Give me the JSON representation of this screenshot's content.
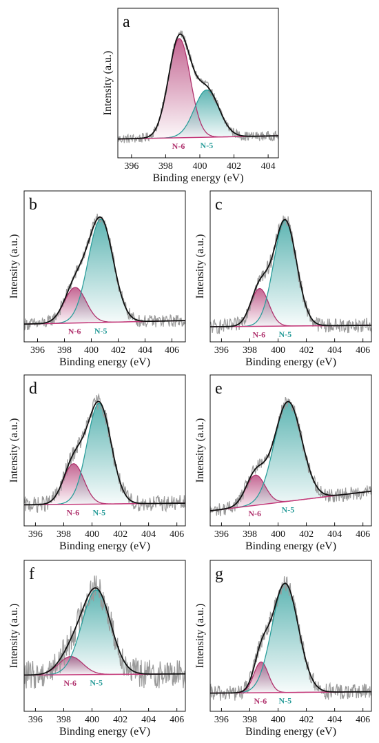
{
  "colors": {
    "n6": "#b0336e",
    "n5": "#2a9d9a",
    "envelope": "#111111",
    "raw": "#9a9a9a",
    "background_line": "#c43a7a"
  },
  "chart_data": [
    {
      "type": "line",
      "panel": "a",
      "xlabel": "Binding energy (eV)",
      "ylabel": "Intensity (a.u.)",
      "xlim": [
        395.2,
        404.6
      ],
      "xticks": [
        396,
        398,
        400,
        402,
        404
      ],
      "grid": false,
      "peaks": [
        {
          "name": "N-6",
          "center": 398.8,
          "height": 0.63,
          "fwhm": 1.5
        },
        {
          "name": "N-5",
          "center": 400.4,
          "height": 0.3,
          "fwhm": 1.7
        }
      ],
      "baseline": [
        0.07,
        0.09
      ],
      "noise": 0.03,
      "ylim": [
        -0.05,
        0.9
      ]
    },
    {
      "type": "line",
      "panel": "b",
      "xlabel": "Binding energy (eV)",
      "ylabel": "Intensity (a.u.)",
      "xlim": [
        395,
        407
      ],
      "xticks": [
        396,
        398,
        400,
        402,
        404,
        406
      ],
      "grid": false,
      "peaks": [
        {
          "name": "N-6",
          "center": 398.8,
          "height": 0.2,
          "fwhm": 1.9
        },
        {
          "name": "N-5",
          "center": 400.7,
          "height": 0.58,
          "fwhm": 2.2
        }
      ],
      "baseline": [
        0.05,
        0.07
      ],
      "noise": 0.035,
      "ylim": [
        -0.05,
        0.8
      ]
    },
    {
      "type": "line",
      "panel": "c",
      "xlabel": "Binding energy (eV)",
      "ylabel": "Intensity (a.u.)",
      "xlim": [
        395.2,
        406.6
      ],
      "xticks": [
        396,
        398,
        400,
        402,
        404,
        406
      ],
      "grid": false,
      "peaks": [
        {
          "name": "N-6",
          "center": 398.7,
          "height": 0.25,
          "fwhm": 1.5
        },
        {
          "name": "N-5",
          "center": 400.5,
          "height": 0.7,
          "fwhm": 1.9
        }
      ],
      "baseline": [
        0.05,
        0.06
      ],
      "noise": 0.05,
      "ylim": [
        -0.05,
        0.95
      ]
    },
    {
      "type": "line",
      "panel": "d",
      "xlabel": "Binding energy (eV)",
      "ylabel": "Intensity (a.u.)",
      "xlim": [
        395.2,
        406.6
      ],
      "xticks": [
        396,
        398,
        400,
        402,
        404,
        406
      ],
      "grid": false,
      "peaks": [
        {
          "name": "N-6",
          "center": 398.7,
          "height": 0.25,
          "fwhm": 1.7
        },
        {
          "name": "N-5",
          "center": 400.5,
          "height": 0.62,
          "fwhm": 2.0
        }
      ],
      "baseline": [
        0.05,
        0.06
      ],
      "noise": 0.05,
      "ylim": [
        -0.08,
        0.85
      ]
    },
    {
      "type": "line",
      "panel": "e",
      "xlabel": "Binding energy (eV)",
      "ylabel": "Intensity (a.u.)",
      "xlim": [
        395.2,
        406.6
      ],
      "xticks": [
        396,
        398,
        400,
        402,
        404,
        406
      ],
      "grid": false,
      "peaks": [
        {
          "name": "N-6",
          "center": 398.4,
          "height": 0.2,
          "fwhm": 1.6
        },
        {
          "name": "N-5",
          "center": 400.7,
          "height": 0.66,
          "fwhm": 2.3
        }
      ],
      "baseline": [
        0.05,
        0.18
      ],
      "noise": 0.045,
      "ylim": [
        -0.05,
        0.95
      ]
    },
    {
      "type": "line",
      "panel": "f",
      "xlabel": "Binding energy (eV)",
      "ylabel": "Intensity (a.u.)",
      "xlim": [
        395.2,
        406.6
      ],
      "xticks": [
        396,
        398,
        400,
        402,
        404,
        406
      ],
      "grid": false,
      "peaks": [
        {
          "name": "N-6",
          "center": 398.5,
          "height": 0.15,
          "fwhm": 2.0
        },
        {
          "name": "N-5",
          "center": 400.3,
          "height": 0.7,
          "fwhm": 2.4
        }
      ],
      "baseline": [
        0.05,
        0.06
      ],
      "noise": 0.12,
      "ylim": [
        -0.25,
        1.0
      ]
    },
    {
      "type": "line",
      "panel": "g",
      "xlabel": "Binding energy (eV)",
      "ylabel": "Intensity (a.u.)",
      "xlim": [
        395.2,
        406.6
      ],
      "xticks": [
        396,
        398,
        400,
        402,
        404,
        406
      ],
      "grid": false,
      "peaks": [
        {
          "name": "N-6",
          "center": 398.8,
          "height": 0.22,
          "fwhm": 1.2
        },
        {
          "name": "N-5",
          "center": 400.5,
          "height": 0.78,
          "fwhm": 2.2
        }
      ],
      "baseline": [
        0.05,
        0.06
      ],
      "noise": 0.06,
      "ylim": [
        -0.08,
        1.0
      ]
    }
  ]
}
